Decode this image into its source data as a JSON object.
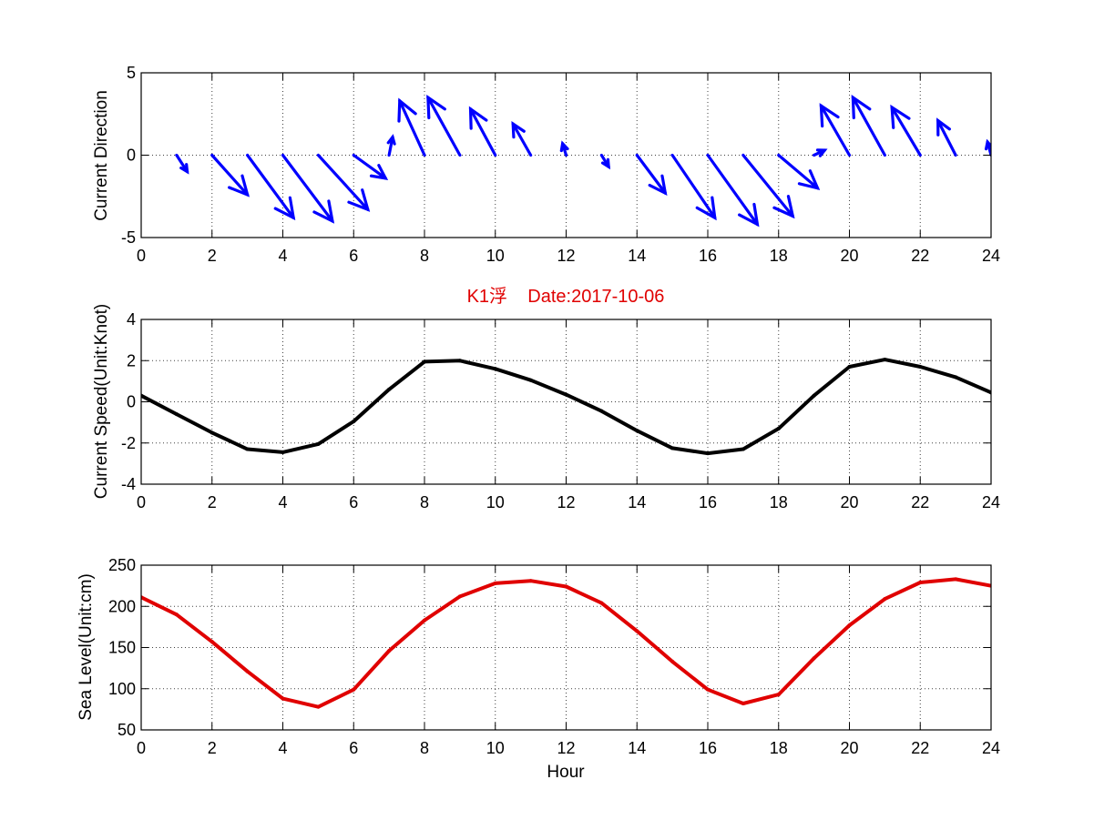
{
  "figure_title": "K1浮    Date:2017-10-06",
  "chart_data": [
    {
      "type": "quiver",
      "ylabel": "Current Direction",
      "xlabel": "",
      "xlim": [
        0,
        24
      ],
      "ylim": [
        -5,
        5
      ],
      "xticks": [
        0,
        2,
        4,
        6,
        8,
        10,
        12,
        14,
        16,
        18,
        20,
        22,
        24
      ],
      "yticks": [
        -5,
        0,
        5
      ],
      "grid": true,
      "color": "#0000ff",
      "vectors": [
        {
          "x": 1,
          "u": 0.3,
          "v": -1.0
        },
        {
          "x": 2,
          "u": 1.0,
          "v": -2.4
        },
        {
          "x": 3,
          "u": 1.3,
          "v": -3.8
        },
        {
          "x": 4,
          "u": 1.4,
          "v": -4.0
        },
        {
          "x": 5,
          "u": 1.4,
          "v": -3.3
        },
        {
          "x": 6,
          "u": 0.9,
          "v": -1.4
        },
        {
          "x": 7,
          "u": 0.1,
          "v": 1.1
        },
        {
          "x": 8,
          "u": -0.7,
          "v": 3.3
        },
        {
          "x": 9,
          "u": -0.9,
          "v": 3.5
        },
        {
          "x": 10,
          "u": -0.7,
          "v": 2.8
        },
        {
          "x": 11,
          "u": -0.5,
          "v": 1.9
        },
        {
          "x": 12,
          "u": -0.1,
          "v": 0.7
        },
        {
          "x": 13,
          "u": 0.2,
          "v": -0.7
        },
        {
          "x": 14,
          "u": 0.8,
          "v": -2.3
        },
        {
          "x": 15,
          "u": 1.2,
          "v": -3.8
        },
        {
          "x": 16,
          "u": 1.4,
          "v": -4.2
        },
        {
          "x": 17,
          "u": 1.4,
          "v": -3.7
        },
        {
          "x": 18,
          "u": 1.1,
          "v": -2.0
        },
        {
          "x": 19,
          "u": 0.3,
          "v": 0.3
        },
        {
          "x": 20,
          "u": -0.8,
          "v": 3.0
        },
        {
          "x": 21,
          "u": -0.9,
          "v": 3.5
        },
        {
          "x": 22,
          "u": -0.8,
          "v": 2.9
        },
        {
          "x": 23,
          "u": -0.5,
          "v": 2.1
        },
        {
          "x": 24,
          "u": -0.1,
          "v": 0.8
        }
      ]
    },
    {
      "type": "line",
      "ylabel": "Current Speed(Unit:Knot)",
      "xlabel": "",
      "xlim": [
        0,
        24
      ],
      "ylim": [
        -4,
        4
      ],
      "xticks": [
        0,
        2,
        4,
        6,
        8,
        10,
        12,
        14,
        16,
        18,
        20,
        22,
        24
      ],
      "yticks": [
        -4,
        -2,
        0,
        2,
        4
      ],
      "grid": true,
      "color": "#000000",
      "x": [
        0,
        1,
        2,
        3,
        4,
        5,
        6,
        7,
        8,
        9,
        10,
        11,
        12,
        13,
        14,
        15,
        16,
        17,
        18,
        19,
        20,
        21,
        22,
        23,
        24
      ],
      "y": [
        0.3,
        -0.6,
        -1.5,
        -2.3,
        -2.45,
        -2.05,
        -0.95,
        0.6,
        1.95,
        2.0,
        1.6,
        1.05,
        0.35,
        -0.45,
        -1.4,
        -2.25,
        -2.5,
        -2.3,
        -1.3,
        0.3,
        1.7,
        2.05,
        1.7,
        1.2,
        0.45
      ]
    },
    {
      "type": "line",
      "ylabel": "Sea Level(Unit:cm)",
      "xlabel": "Hour",
      "xlim": [
        0,
        24
      ],
      "ylim": [
        50,
        250
      ],
      "xticks": [
        0,
        2,
        4,
        6,
        8,
        10,
        12,
        14,
        16,
        18,
        20,
        22,
        24
      ],
      "yticks": [
        50,
        100,
        150,
        200,
        250
      ],
      "grid": true,
      "color": "#e00000",
      "x": [
        0,
        1,
        2,
        3,
        4,
        5,
        6,
        7,
        8,
        9,
        10,
        11,
        12,
        13,
        14,
        15,
        16,
        17,
        18,
        19,
        20,
        21,
        22,
        23,
        24
      ],
      "y": [
        211,
        190,
        157,
        121,
        88,
        78,
        99,
        146,
        183,
        212,
        228,
        231,
        224,
        204,
        170,
        133,
        99,
        82,
        93,
        137,
        177,
        209,
        229,
        233,
        225
      ]
    }
  ]
}
